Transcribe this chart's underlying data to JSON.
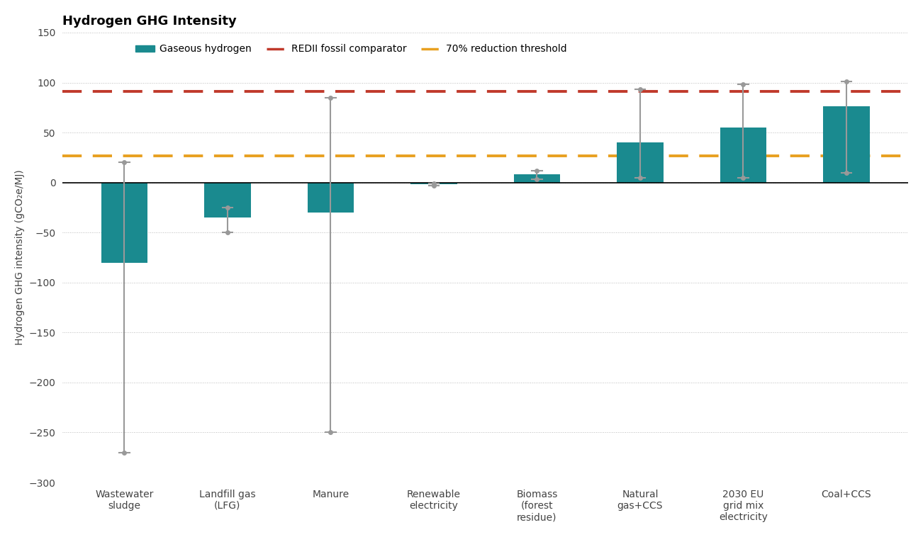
{
  "title": "Hydrogen GHG Intensity",
  "ylabel": "Hydrogen GHG intensity (gCO₂e/MJ)",
  "categories": [
    "Wastewater\nsludge",
    "Landfill gas\n(LFG)",
    "Manure",
    "Renewable\nelectricity",
    "Biomass\n(forest\nresidue)",
    "Natural\ngas+CCS",
    "2030 EU\ngrid mix\nelectricity",
    "Coal+CCS"
  ],
  "bar_values": [
    -80,
    -35,
    -30,
    -2,
    8,
    40,
    55,
    76
  ],
  "err_low": [
    -270,
    -50,
    -250,
    -3,
    3,
    5,
    5,
    10
  ],
  "err_high": [
    20,
    -25,
    85,
    -1,
    12,
    93,
    98,
    101
  ],
  "bar_color": "#1a8a8f",
  "err_color": "#999999",
  "redii_line": 91,
  "redii_color": "#c0392b",
  "threshold_line": 27,
  "threshold_color": "#e8a020",
  "background_color": "#ffffff",
  "ylim": [
    -300,
    150
  ],
  "yticks": [
    -300,
    -250,
    -200,
    -150,
    -100,
    -50,
    0,
    50,
    100,
    150
  ],
  "legend_gaseous": "Gaseous hydrogen",
  "legend_redii": "REDII fossil comparator",
  "legend_threshold": "70% reduction threshold",
  "title_fontsize": 13,
  "label_fontsize": 10,
  "tick_fontsize": 10,
  "grid_color": "#bbbbbb",
  "bar_width": 0.45
}
